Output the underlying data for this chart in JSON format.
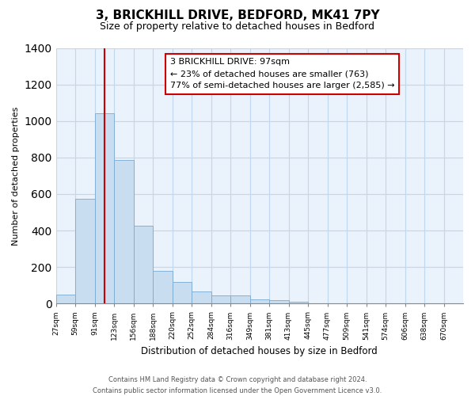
{
  "title": "3, BRICKHILL DRIVE, BEDFORD, MK41 7PY",
  "subtitle": "Size of property relative to detached houses in Bedford",
  "xlabel": "Distribution of detached houses by size in Bedford",
  "ylabel": "Number of detached properties",
  "bin_labels": [
    "27sqm",
    "59sqm",
    "91sqm",
    "123sqm",
    "156sqm",
    "188sqm",
    "220sqm",
    "252sqm",
    "284sqm",
    "316sqm",
    "349sqm",
    "381sqm",
    "413sqm",
    "445sqm",
    "477sqm",
    "509sqm",
    "541sqm",
    "574sqm",
    "606sqm",
    "638sqm",
    "670sqm"
  ],
  "bar_values": [
    50,
    575,
    1040,
    785,
    425,
    178,
    120,
    65,
    45,
    45,
    25,
    18,
    10,
    0,
    0,
    0,
    0,
    0,
    0,
    0
  ],
  "bar_color": "#c8ddf0",
  "bar_edge_color": "#7aaad0",
  "marker_line_color": "#cc0000",
  "marker_bin_index": 2,
  "ylim": [
    0,
    1400
  ],
  "yticks": [
    0,
    200,
    400,
    600,
    800,
    1000,
    1200,
    1400
  ],
  "annotation_title": "3 BRICKHILL DRIVE: 97sqm",
  "annotation_line1": "← 23% of detached houses are smaller (763)",
  "annotation_line2": "77% of semi-detached houses are larger (2,585) →",
  "annotation_box_color": "#ffffff",
  "annotation_box_edge": "#cc0000",
  "footer_line1": "Contains HM Land Registry data © Crown copyright and database right 2024.",
  "footer_line2": "Contains public sector information licensed under the Open Government Licence v3.0.",
  "background_color": "#ffffff",
  "plot_bg_color": "#eaf2fb",
  "grid_color": "#c0d8ef"
}
